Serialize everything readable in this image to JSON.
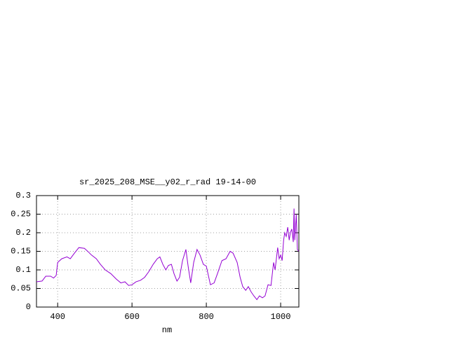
{
  "chart_data": {
    "type": "line",
    "title": "sr_2025_208_MSE__y02_r_rad 19-14-00",
    "x_label": "nm",
    "x": [
      343,
      358,
      368,
      381,
      389,
      396,
      400,
      411,
      425,
      434,
      445,
      457,
      472,
      483,
      491,
      504,
      515,
      528,
      543,
      558,
      570,
      581,
      591,
      600,
      611,
      623,
      634,
      645,
      657,
      668,
      675,
      683,
      691,
      698,
      706,
      713,
      721,
      728,
      736,
      745,
      751,
      758,
      766,
      775,
      783,
      792,
      800,
      811,
      821,
      830,
      842,
      853,
      864,
      872,
      883,
      891,
      898,
      906,
      913,
      921,
      928,
      936,
      943,
      951,
      958,
      966,
      974,
      981,
      985,
      992,
      996,
      1000,
      1004,
      1008,
      1011,
      1015,
      1019,
      1023,
      1026,
      1030,
      1034,
      1036,
      1038,
      1042,
      1045,
      1049
    ],
    "series": [
      {
        "color": "#9400d3",
        "values": [
          0.068,
          0.07,
          0.083,
          0.083,
          0.078,
          0.085,
          0.12,
          0.13,
          0.135,
          0.13,
          0.145,
          0.16,
          0.158,
          0.148,
          0.14,
          0.13,
          0.115,
          0.1,
          0.09,
          0.075,
          0.065,
          0.068,
          0.058,
          0.06,
          0.068,
          0.072,
          0.08,
          0.095,
          0.115,
          0.13,
          0.135,
          0.115,
          0.1,
          0.112,
          0.115,
          0.09,
          0.07,
          0.08,
          0.125,
          0.155,
          0.11,
          0.065,
          0.12,
          0.155,
          0.14,
          0.115,
          0.11,
          0.06,
          0.065,
          0.09,
          0.125,
          0.13,
          0.15,
          0.145,
          0.12,
          0.08,
          0.055,
          0.045,
          0.055,
          0.04,
          0.03,
          0.02,
          0.03,
          0.025,
          0.03,
          0.06,
          0.058,
          0.12,
          0.1,
          0.16,
          0.13,
          0.14,
          0.125,
          0.18,
          0.2,
          0.19,
          0.215,
          0.18,
          0.2,
          0.21,
          0.175,
          0.265,
          0.18,
          0.25,
          0.155,
          0.15
        ]
      }
    ],
    "xlim": [
      343,
      1049
    ],
    "xticks": [
      400,
      600,
      800,
      1000
    ],
    "ylim": [
      0,
      0.3
    ],
    "yticks": [
      0,
      0.05,
      0.1,
      0.15,
      0.2,
      0.25,
      0.3
    ],
    "grid": true
  }
}
